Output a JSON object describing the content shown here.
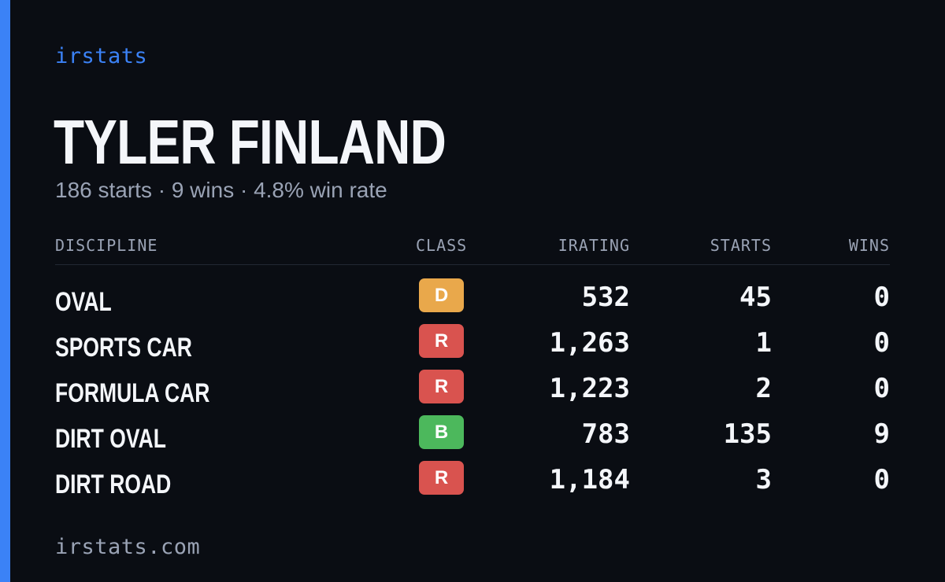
{
  "brand": "irstats",
  "driver": {
    "name": "TYLER FINLAND",
    "summary": "186 starts · 9 wins · 4.8% win rate"
  },
  "colors": {
    "accent": "#3b82f6",
    "class_D": "#e9a84b",
    "class_R": "#d9534f",
    "class_B": "#4cb85c"
  },
  "table": {
    "headers": {
      "discipline": "DISCIPLINE",
      "class": "CLASS",
      "irating": "IRATING",
      "starts": "STARTS",
      "wins": "WINS"
    },
    "rows": [
      {
        "discipline": "OVAL",
        "class": "D",
        "class_color": "#e9a84b",
        "irating": "532",
        "starts": "45",
        "wins": "0"
      },
      {
        "discipline": "SPORTS CAR",
        "class": "R",
        "class_color": "#d9534f",
        "irating": "1,263",
        "starts": "1",
        "wins": "0"
      },
      {
        "discipline": "FORMULA CAR",
        "class": "R",
        "class_color": "#d9534f",
        "irating": "1,223",
        "starts": "2",
        "wins": "0"
      },
      {
        "discipline": "DIRT OVAL",
        "class": "B",
        "class_color": "#4cb85c",
        "irating": "783",
        "starts": "135",
        "wins": "9"
      },
      {
        "discipline": "DIRT ROAD",
        "class": "R",
        "class_color": "#d9534f",
        "irating": "1,184",
        "starts": "3",
        "wins": "0"
      }
    ]
  },
  "footer": {
    "url": "irstats.com"
  }
}
